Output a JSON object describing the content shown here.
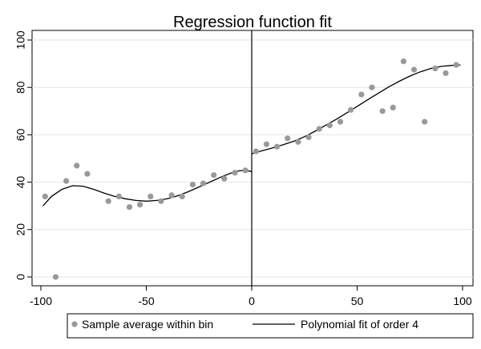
{
  "chart_data": {
    "type": "scatter",
    "title": "Regression function fit",
    "xlabel": "",
    "ylabel": "",
    "xlim": [
      -100,
      100
    ],
    "ylim": [
      0,
      100
    ],
    "x_ticks": [
      -100,
      -50,
      0,
      50,
      100
    ],
    "y_ticks": [
      0,
      20,
      40,
      60,
      80,
      100
    ],
    "grid": "horizontal",
    "cutoff": 0,
    "legend_position": "bottom",
    "colors": {
      "points": "#999999",
      "fit": "#000000",
      "grid": "#e6e6e6"
    },
    "series": [
      {
        "name": "Sample average within bin",
        "kind": "scatter",
        "points": [
          [
            -98,
            34
          ],
          [
            -93,
            0
          ],
          [
            -88,
            40.5
          ],
          [
            -83,
            47
          ],
          [
            -78,
            43.5
          ],
          [
            -68,
            32
          ],
          [
            -63,
            34
          ],
          [
            -58,
            29.5
          ],
          [
            -53,
            30.5
          ],
          [
            -48,
            34
          ],
          [
            -43,
            32
          ],
          [
            -38,
            34.5
          ],
          [
            -33,
            34
          ],
          [
            -28,
            39
          ],
          [
            -23,
            39.5
          ],
          [
            -18,
            43
          ],
          [
            -13,
            41.5
          ],
          [
            -8,
            44
          ],
          [
            -3,
            45
          ],
          [
            2,
            53
          ],
          [
            7,
            56
          ],
          [
            12,
            55
          ],
          [
            17,
            58.5
          ],
          [
            22,
            57
          ],
          [
            27,
            59
          ],
          [
            32,
            62.5
          ],
          [
            37,
            64
          ],
          [
            42,
            65.5
          ],
          [
            47,
            70.5
          ],
          [
            52,
            77
          ],
          [
            57,
            80
          ],
          [
            62,
            70
          ],
          [
            67,
            71.5
          ],
          [
            72,
            91
          ],
          [
            77,
            87.5
          ],
          [
            82,
            65.5
          ],
          [
            87,
            88
          ],
          [
            92,
            86
          ],
          [
            97,
            89.5
          ]
        ]
      },
      {
        "name": "Polynomial fit of order 4",
        "kind": "line",
        "segments": [
          [
            [
              -99,
              30
            ],
            [
              -95,
              34
            ],
            [
              -90,
              37
            ],
            [
              -85,
              38.5
            ],
            [
              -80,
              38.3
            ],
            [
              -75,
              37
            ],
            [
              -70,
              35.4
            ],
            [
              -65,
              34
            ],
            [
              -60,
              33
            ],
            [
              -55,
              32.3
            ],
            [
              -50,
              32
            ],
            [
              -45,
              32.3
            ],
            [
              -40,
              33
            ],
            [
              -35,
              34.3
            ],
            [
              -30,
              36
            ],
            [
              -25,
              38
            ],
            [
              -20,
              40
            ],
            [
              -15,
              42
            ],
            [
              -10,
              43.8
            ],
            [
              -6,
              44.8
            ],
            [
              -3,
              45
            ],
            [
              0,
              44.5
            ]
          ],
          [
            [
              0,
              52
            ],
            [
              5,
              53.3
            ],
            [
              10,
              54.5
            ],
            [
              15,
              55.8
            ],
            [
              20,
              57.3
            ],
            [
              25,
              59.2
            ],
            [
              30,
              61.5
            ],
            [
              35,
              64
            ],
            [
              40,
              66.5
            ],
            [
              45,
              69.2
            ],
            [
              50,
              72
            ],
            [
              55,
              74.8
            ],
            [
              60,
              77.5
            ],
            [
              65,
              80.2
            ],
            [
              70,
              82.6
            ],
            [
              75,
              84.8
            ],
            [
              80,
              86.6
            ],
            [
              85,
              88
            ],
            [
              90,
              88.9
            ],
            [
              95,
              89.3
            ],
            [
              99,
              89.5
            ]
          ]
        ]
      }
    ]
  }
}
